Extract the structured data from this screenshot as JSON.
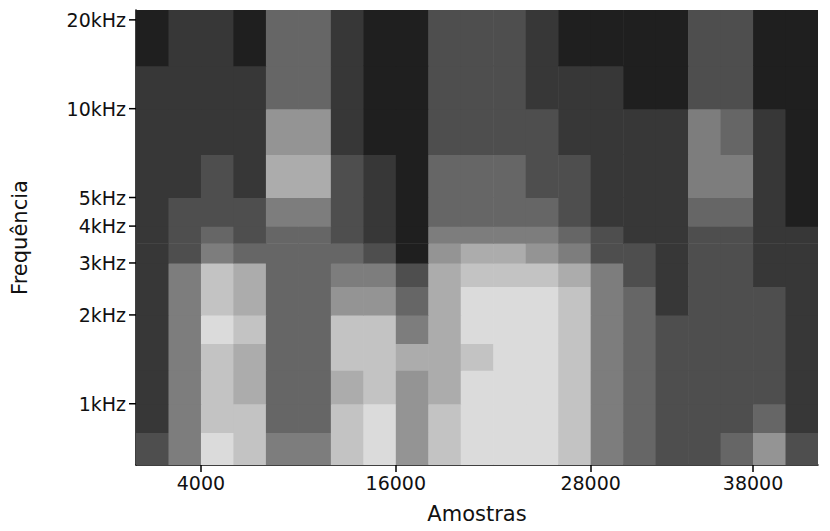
{
  "chart_data": {
    "type": "heatmap",
    "x_label": "Amostras",
    "y_label": "Frequência",
    "log": "y",
    "grid": false,
    "xlim": [
      0,
      42000
    ],
    "xticks": [
      4000,
      16000,
      28000,
      38000
    ],
    "ylim": [
      620,
      21600
    ],
    "yticks": [
      {
        "value": 1000,
        "label": "1kHz"
      },
      {
        "value": 2000,
        "label": "2kHz"
      },
      {
        "value": 3000,
        "label": "3kHz"
      },
      {
        "value": 4000,
        "label": "4kHz"
      },
      {
        "value": 5000,
        "label": "5kHz"
      },
      {
        "value": 10000,
        "label": "10kHz"
      },
      {
        "value": 20000,
        "label": "20kHz"
      }
    ],
    "x_edges": [
      0,
      2000,
      4000,
      6000,
      8000,
      10000,
      12000,
      14000,
      16000,
      18000,
      20000,
      22000,
      24000,
      26000,
      28000,
      30000,
      32000,
      34000,
      36000,
      38000,
      40000,
      42000
    ],
    "y_edges": [
      620,
      800,
      1000,
      1300,
      1600,
      2000,
      2500,
      3000,
      3500,
      4000,
      5000,
      7000,
      10000,
      14000,
      21600
    ],
    "value_range": [
      0,
      10
    ],
    "cells": [
      [
        3,
        5,
        9,
        8,
        5,
        5,
        8,
        9,
        6,
        8,
        9,
        9,
        9,
        8,
        5,
        4,
        3,
        3,
        4,
        6,
        3
      ],
      [
        2,
        5,
        8,
        8,
        4,
        4,
        8,
        9,
        6,
        8,
        9,
        9,
        9,
        8,
        5,
        4,
        3,
        3,
        3,
        4,
        2
      ],
      [
        2,
        5,
        8,
        7,
        4,
        4,
        7,
        8,
        6,
        7,
        9,
        9,
        9,
        8,
        5,
        4,
        3,
        3,
        3,
        3,
        2
      ],
      [
        2,
        5,
        8,
        7,
        4,
        4,
        8,
        8,
        7,
        7,
        8,
        9,
        9,
        8,
        5,
        4,
        3,
        3,
        3,
        3,
        2
      ],
      [
        2,
        5,
        9,
        8,
        4,
        4,
        8,
        8,
        5,
        7,
        9,
        9,
        9,
        8,
        5,
        4,
        3,
        3,
        3,
        3,
        2
      ],
      [
        2,
        5,
        8,
        7,
        4,
        4,
        6,
        6,
        4,
        7,
        9,
        9,
        9,
        8,
        5,
        4,
        2,
        3,
        3,
        3,
        2
      ],
      [
        2,
        5,
        8,
        7,
        4,
        4,
        5,
        5,
        3,
        7,
        8,
        8,
        8,
        7,
        5,
        3,
        2,
        3,
        3,
        2,
        2
      ],
      [
        2,
        3,
        5,
        4,
        4,
        4,
        4,
        3,
        1,
        6,
        7,
        7,
        6,
        5,
        3,
        3,
        2,
        3,
        3,
        2,
        2
      ],
      [
        2,
        3,
        4,
        3,
        4,
        4,
        3,
        2,
        1,
        5,
        5,
        5,
        5,
        4,
        3,
        2,
        2,
        3,
        3,
        2,
        2
      ],
      [
        2,
        3,
        3,
        3,
        5,
        5,
        3,
        2,
        1,
        4,
        4,
        4,
        4,
        3,
        2,
        2,
        2,
        4,
        4,
        2,
        1
      ],
      [
        2,
        2,
        3,
        2,
        7,
        7,
        3,
        2,
        1,
        4,
        4,
        4,
        3,
        3,
        2,
        2,
        2,
        5,
        5,
        2,
        1
      ],
      [
        2,
        2,
        2,
        2,
        6,
        6,
        2,
        1,
        1,
        3,
        3,
        3,
        3,
        2,
        2,
        2,
        2,
        5,
        4,
        2,
        1
      ],
      [
        2,
        2,
        2,
        2,
        4,
        4,
        2,
        1,
        1,
        3,
        3,
        3,
        2,
        2,
        2,
        1,
        1,
        3,
        3,
        1,
        1
      ],
      [
        1,
        2,
        2,
        1,
        4,
        4,
        2,
        1,
        1,
        3,
        3,
        3,
        2,
        1,
        1,
        1,
        1,
        3,
        3,
        1,
        1
      ]
    ]
  }
}
